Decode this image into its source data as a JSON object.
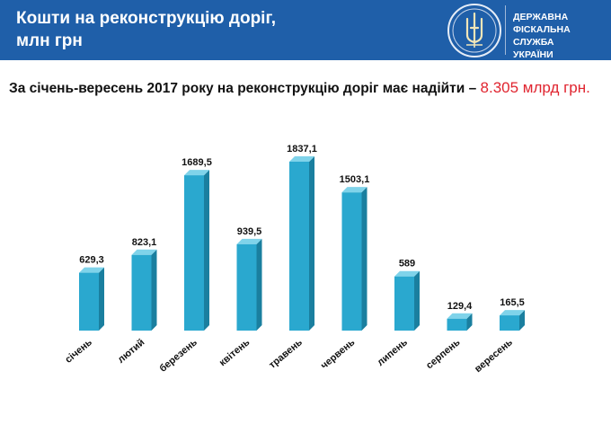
{
  "header": {
    "title_line1": "Кошти на реконструкцію доріг,",
    "title_line2": "млн грн",
    "org_line1": "ДЕРЖАВНА",
    "org_line2": "ФІСКАЛЬНА СЛУЖБА",
    "org_line3": "УКРАЇНИ",
    "emblem": "tryzub-emblem-icon",
    "color": "#1f5fa9"
  },
  "subtitle": {
    "text": "За січень-вересень 2017 року на реконструкцію доріг має надійти –",
    "highlight": "8.305 млрд грн.",
    "highlight_color": "#e0242f"
  },
  "chart_data": {
    "type": "bar",
    "categories": [
      "січень",
      "лютий",
      "березень",
      "квітень",
      "травень",
      "червень",
      "липень",
      "серпень",
      "вересень"
    ],
    "values": [
      629.3,
      823.1,
      1689.5,
      939.5,
      1837.1,
      1503.1,
      589,
      129.4,
      165.5
    ],
    "value_labels": [
      "629,3",
      "823,1",
      "1689,5",
      "939,5",
      "1837,1",
      "1503,1",
      "589",
      "129,4",
      "165,5"
    ],
    "ylim": [
      0,
      1837.1
    ],
    "bar_color": "#2aa8cf",
    "grid": false,
    "legend": "none"
  }
}
